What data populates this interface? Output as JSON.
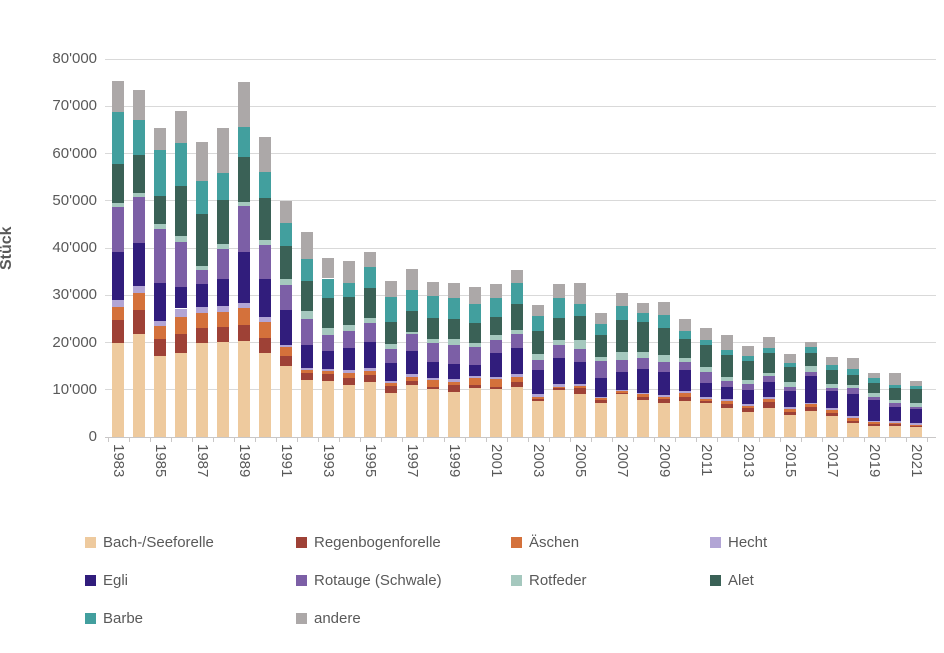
{
  "chart_data": {
    "type": "bar",
    "stacked": true,
    "title": "",
    "xlabel": "",
    "ylabel": "Stück",
    "ylim": [
      0,
      80000
    ],
    "grid": true,
    "legend_position": "bottom",
    "y_tick_labels": [
      "0",
      "10'000",
      "20'000",
      "30'000",
      "40'000",
      "50'000",
      "60'000",
      "70'000",
      "80'000"
    ],
    "x_tick_labels": [
      "1983",
      "1985",
      "1987",
      "1989",
      "1991",
      "1993",
      "1995",
      "1997",
      "1999",
      "2001",
      "2003",
      "2005",
      "2007",
      "2009",
      "2011",
      "2013",
      "2015",
      "2017",
      "2019",
      "2021"
    ],
    "categories": [
      1983,
      1984,
      1985,
      1986,
      1987,
      1988,
      1989,
      1990,
      1991,
      1992,
      1993,
      1994,
      1995,
      1996,
      1997,
      1998,
      1999,
      2000,
      2001,
      2002,
      2003,
      2004,
      2005,
      2006,
      2007,
      2008,
      2009,
      2010,
      2011,
      2012,
      2013,
      2014,
      2015,
      2016,
      2017,
      2018,
      2019,
      2020,
      2021
    ],
    "series": [
      {
        "name": "Bach-/Seeforelle",
        "color": "#EECA9E",
        "values": [
          20000,
          21900,
          17100,
          17800,
          19800,
          20100,
          20300,
          17800,
          15000,
          12000,
          11850,
          11000,
          11700,
          9350,
          11000,
          10150,
          9600,
          10400,
          10150,
          10650,
          7650,
          9950,
          9050,
          7250,
          9050,
          7800,
          7250,
          7600,
          7150,
          6200,
          5350,
          6200,
          4650,
          5550,
          4450,
          2900,
          2350,
          2350,
          2050
        ]
      },
      {
        "name": "Regenbogenforelle",
        "color": "#9E4136",
        "values": [
          4700,
          4900,
          3550,
          4000,
          3200,
          3200,
          3400,
          3100,
          2100,
          1550,
          1400,
          1550,
          1400,
          1450,
          900,
          500,
          1400,
          600,
          500,
          900,
          400,
          350,
          1350,
          550,
          300,
          700,
          800,
          900,
          550,
          750,
          700,
          1250,
          700,
          700,
          700,
          550,
          350,
          350,
          300
        ]
      },
      {
        "name": "Äschen",
        "color": "#D4713B",
        "values": [
          2900,
          3700,
          2800,
          3600,
          3300,
          3200,
          3600,
          3500,
          1900,
          550,
          750,
          900,
          900,
          550,
          850,
          1450,
          700,
          1550,
          1600,
          1200,
          450,
          350,
          400,
          400,
          350,
          550,
          450,
          750,
          350,
          650,
          550,
          600,
          550,
          700,
          550,
          650,
          400,
          300,
          250
        ]
      },
      {
        "name": "Hecht",
        "color": "#B2A5D5",
        "values": [
          1500,
          1400,
          1150,
          1800,
          1300,
          1300,
          1000,
          1100,
          500,
          500,
          500,
          700,
          650,
          500,
          500,
          450,
          500,
          400,
          500,
          500,
          550,
          500,
          350,
          300,
          250,
          300,
          400,
          500,
          350,
          350,
          350,
          350,
          350,
          300,
          350,
          350,
          300,
          400,
          300
        ]
      },
      {
        "name": "Egli",
        "color": "#311D7C",
        "values": [
          10000,
          9100,
          7900,
          4600,
          4700,
          5700,
          10900,
          8000,
          7400,
          4800,
          3700,
          4600,
          5500,
          3850,
          4950,
          3350,
          3150,
          2250,
          4950,
          5650,
          5100,
          5500,
          4750,
          4050,
          3850,
          4950,
          4900,
          4400,
          2950,
          2700,
          3000,
          3300,
          3550,
          5650,
          3650,
          4650,
          4400,
          3000,
          2950
        ]
      },
      {
        "name": "Rotauge (Schwale)",
        "color": "#7C5FA6",
        "values": [
          9600,
          9800,
          11600,
          9500,
          3000,
          6200,
          9600,
          7100,
          5200,
          5650,
          3350,
          3750,
          3900,
          2850,
          3500,
          3900,
          4100,
          3900,
          2800,
          3000,
          2250,
          2800,
          2650,
          3500,
          2450,
          2450,
          2100,
          1650,
          2450,
          1200,
          1200,
          1200,
          850,
          900,
          700,
          1200,
          700,
          700,
          550
        ]
      },
      {
        "name": "Rotfeder",
        "color": "#A5C8BE",
        "values": [
          900,
          850,
          950,
          1200,
          800,
          1200,
          900,
          1200,
          1300,
          1550,
          1450,
          1200,
          1200,
          1050,
          450,
          900,
          1200,
          900,
          1050,
          700,
          1100,
          1050,
          1950,
          950,
          1750,
          1250,
          1450,
          850,
          950,
          900,
          900,
          700,
          1050,
          1200,
          800,
          700,
          750,
          700,
          700
        ]
      },
      {
        "name": "Alet",
        "color": "#3A6156",
        "values": [
          8200,
          8100,
          5900,
          10600,
          11200,
          9200,
          9600,
          8700,
          7100,
          6350,
          6450,
          6000,
          6200,
          4800,
          4500,
          4550,
          4250,
          4050,
          3900,
          5450,
          4900,
          4600,
          5100,
          4550,
          6750,
          6400,
          5750,
          4050,
          4700,
          4600,
          4000,
          4100,
          3150,
          2800,
          2950,
          2100,
          2250,
          2500,
          3000
        ]
      },
      {
        "name": "Barbe",
        "color": "#429F9E",
        "values": [
          10900,
          7400,
          9750,
          9100,
          6800,
          5800,
          6300,
          5600,
          4900,
          4800,
          4100,
          2900,
          4550,
          5250,
          4450,
          4550,
          4550,
          4000,
          4000,
          4450,
          3200,
          4350,
          2650,
          2300,
          3000,
          1750,
          2700,
          1700,
          1050,
          1050,
          1050,
          1050,
          850,
          1150,
          1050,
          1200,
          900,
          700,
          700
        ]
      },
      {
        "name": "andere",
        "color": "#ACA8A8",
        "values": [
          6700,
          6200,
          4750,
          6800,
          8300,
          9400,
          9500,
          7500,
          4600,
          5600,
          4350,
          4600,
          3200,
          3350,
          4550,
          3050,
          3050,
          3750,
          2850,
          2800,
          2300,
          2850,
          4350,
          2500,
          2750,
          2250,
          2800,
          2500,
          2500,
          3150,
          2150,
          2350,
          1850,
          1200,
          1800,
          2350,
          1200,
          2450,
          1100
        ]
      }
    ]
  },
  "style": {
    "gridline_color": "#d9d9d9",
    "axis_color": "#c9c7c7",
    "text_color": "#595959"
  }
}
